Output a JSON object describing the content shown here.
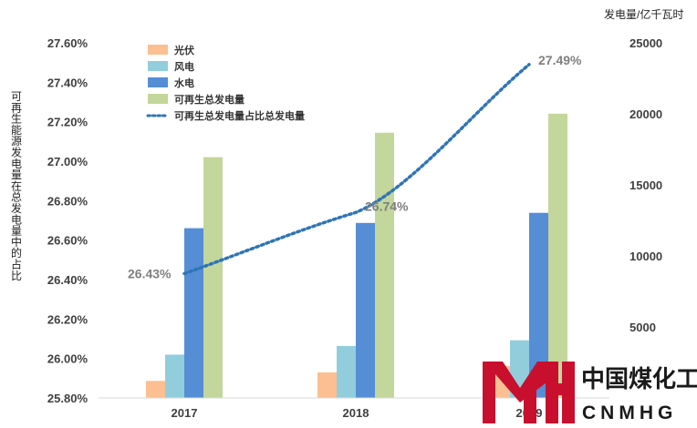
{
  "chart_data": {
    "type": "bar",
    "categories": [
      "2017",
      "2018",
      "2019"
    ],
    "series": [
      {
        "name": "光伏",
        "axis": "right",
        "values": [
          1200,
          1800,
          2240
        ],
        "color": "#fbbf92"
      },
      {
        "name": "风电",
        "axis": "right",
        "values": [
          3050,
          3660,
          4060
        ],
        "color": "#92cddc"
      },
      {
        "name": "水电",
        "axis": "right",
        "values": [
          11950,
          12320,
          13030
        ],
        "color": "#558ed5"
      },
      {
        "name": "可再生总发电量",
        "axis": "right",
        "values": [
          16950,
          18670,
          20010
        ],
        "color": "#c3d69b"
      },
      {
        "name": "可再生总发电量占比总发电量",
        "axis": "left",
        "type": "line",
        "style": "dotted",
        "values": [
          26.43,
          26.74,
          27.49
        ],
        "data_labels": [
          "26.43%",
          "26.74%",
          "27.49%"
        ],
        "color": "#2e75b6"
      }
    ],
    "ylabel": "可再生能源发电量在总发电量中的占比",
    "y2label": "发电量/亿千瓦时",
    "ylim": [
      25.8,
      27.6
    ],
    "y2lim": [
      0,
      25000
    ],
    "y_ticks": [
      "25.80%",
      "26.00%",
      "26.20%",
      "26.40%",
      "26.60%",
      "26.80%",
      "27.00%",
      "27.20%",
      "27.40%",
      "27.60%"
    ],
    "y2_ticks": [
      "5000",
      "10000",
      "15000",
      "20000",
      "25000"
    ],
    "legend_position": "top-left",
    "grid": false
  },
  "watermark": {
    "cn": "中国煤化工",
    "en": "CNMHG",
    "color": "#c8102e"
  }
}
